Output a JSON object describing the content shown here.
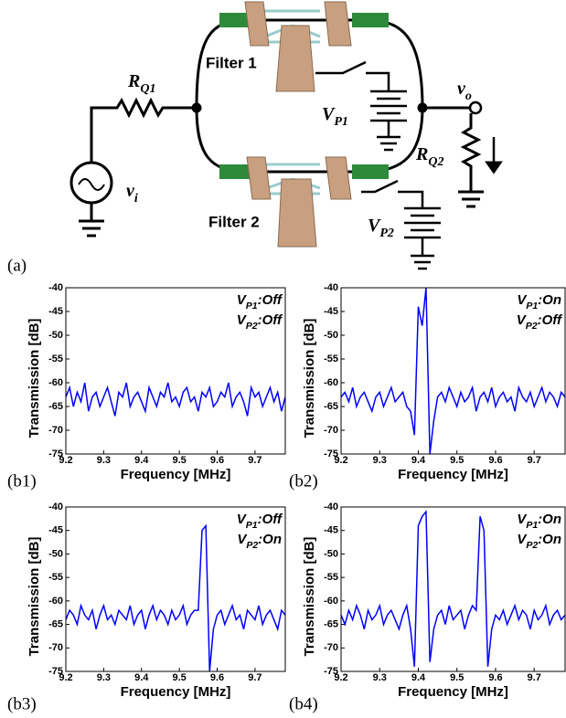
{
  "diagram": {
    "labels": [
      {
        "base": "R",
        "sub": "Q1"
      },
      {
        "base": "v",
        "sub": "i"
      },
      {
        "base": "v",
        "sub": "o"
      },
      {
        "base": "V",
        "sub": "P1"
      },
      {
        "base": "R",
        "sub": "Q2"
      },
      {
        "base": "V",
        "sub": "P2"
      }
    ],
    "filters": [
      "Filter 1",
      "Filter 2"
    ]
  },
  "panel_labels": [
    "(a)",
    "(b1)",
    "(b2)",
    "(b3)",
    "(b4)"
  ],
  "chart_data": [
    {
      "type": "line",
      "xlabel": "Frequency [MHz]",
      "ylabel": "Transmission [dB]",
      "color": "#0000ff",
      "annotations": [
        {
          "base": "V",
          "sub": "P1",
          "state": ":Off"
        },
        {
          "base": "V",
          "sub": "P2",
          "state": ":Off"
        }
      ],
      "xlim": [
        9.2,
        9.78
      ],
      "ylim": [
        -75,
        -40
      ],
      "xticks": [
        9.2,
        9.3,
        9.4,
        9.5,
        9.6,
        9.7
      ],
      "yticks": [
        -40,
        -45,
        -50,
        -55,
        -60,
        -65,
        -70,
        -75
      ],
      "x": [
        9.2,
        9.21,
        9.22,
        9.23,
        9.24,
        9.25,
        9.26,
        9.27,
        9.28,
        9.29,
        9.3,
        9.31,
        9.32,
        9.33,
        9.34,
        9.35,
        9.36,
        9.37,
        9.38,
        9.39,
        9.4,
        9.41,
        9.42,
        9.43,
        9.44,
        9.45,
        9.46,
        9.47,
        9.48,
        9.49,
        9.5,
        9.51,
        9.52,
        9.53,
        9.54,
        9.55,
        9.56,
        9.57,
        9.58,
        9.59,
        9.6,
        9.61,
        9.62,
        9.63,
        9.64,
        9.65,
        9.66,
        9.67,
        9.68,
        9.69,
        9.7,
        9.71,
        9.72,
        9.73,
        9.74,
        9.75,
        9.76,
        9.77,
        9.78
      ],
      "values": [
        -63,
        -61,
        -65,
        -62,
        -64,
        -60,
        -66,
        -63,
        -62,
        -65,
        -63,
        -61,
        -64,
        -67,
        -62,
        -63,
        -60,
        -65,
        -63,
        -62,
        -64,
        -66,
        -61,
        -63,
        -65,
        -62,
        -63,
        -60,
        -64,
        -63,
        -65,
        -62,
        -61,
        -64,
        -63,
        -66,
        -62,
        -63,
        -61,
        -65,
        -64,
        -62,
        -63,
        -60,
        -65,
        -63,
        -62,
        -64,
        -67,
        -61,
        -63,
        -62,
        -65,
        -63,
        -61,
        -64,
        -62,
        -66,
        -63
      ]
    },
    {
      "type": "line",
      "xlabel": "Frequency [MHz]",
      "ylabel": "Transmission [dB]",
      "color": "#0000ff",
      "annotations": [
        {
          "base": "V",
          "sub": "P1",
          "state": ":On"
        },
        {
          "base": "V",
          "sub": "P2",
          "state": ":Off"
        }
      ],
      "xlim": [
        9.2,
        9.78
      ],
      "ylim": [
        -75,
        -40
      ],
      "xticks": [
        9.2,
        9.3,
        9.4,
        9.5,
        9.6,
        9.7
      ],
      "yticks": [
        -40,
        -45,
        -50,
        -55,
        -60,
        -65,
        -70,
        -75
      ],
      "x": [
        9.2,
        9.21,
        9.22,
        9.23,
        9.24,
        9.25,
        9.26,
        9.27,
        9.28,
        9.29,
        9.3,
        9.31,
        9.32,
        9.33,
        9.34,
        9.35,
        9.36,
        9.37,
        9.38,
        9.39,
        9.4,
        9.41,
        9.42,
        9.43,
        9.44,
        9.45,
        9.46,
        9.47,
        9.48,
        9.49,
        9.5,
        9.51,
        9.52,
        9.53,
        9.54,
        9.55,
        9.56,
        9.57,
        9.58,
        9.59,
        9.6,
        9.61,
        9.62,
        9.63,
        9.64,
        9.65,
        9.66,
        9.67,
        9.68,
        9.69,
        9.7,
        9.71,
        9.72,
        9.73,
        9.74,
        9.75,
        9.76,
        9.77,
        9.78
      ],
      "values": [
        -63,
        -62,
        -64,
        -61,
        -65,
        -63,
        -62,
        -64,
        -66,
        -63,
        -62,
        -65,
        -63,
        -61,
        -64,
        -63,
        -62,
        -65,
        -66,
        -71,
        -44,
        -48,
        -40,
        -75,
        -68,
        -63,
        -62,
        -64,
        -61,
        -63,
        -65,
        -62,
        -64,
        -63,
        -61,
        -66,
        -63,
        -62,
        -64,
        -61,
        -65,
        -63,
        -62,
        -64,
        -63,
        -66,
        -61,
        -63,
        -64,
        -62,
        -65,
        -63,
        -61,
        -64,
        -62,
        -63,
        -65,
        -62,
        -63
      ]
    },
    {
      "type": "line",
      "xlabel": "Frequency [MHz]",
      "ylabel": "Transmission [dB]",
      "color": "#0000ff",
      "annotations": [
        {
          "base": "V",
          "sub": "P1",
          "state": ":Off"
        },
        {
          "base": "V",
          "sub": "P2",
          "state": ":On"
        }
      ],
      "xlim": [
        9.2,
        9.78
      ],
      "ylim": [
        -75,
        -40
      ],
      "xticks": [
        9.2,
        9.3,
        9.4,
        9.5,
        9.6,
        9.7
      ],
      "yticks": [
        -40,
        -45,
        -50,
        -55,
        -60,
        -65,
        -70,
        -75
      ],
      "x": [
        9.2,
        9.21,
        9.22,
        9.23,
        9.24,
        9.25,
        9.26,
        9.27,
        9.28,
        9.29,
        9.3,
        9.31,
        9.32,
        9.33,
        9.34,
        9.35,
        9.36,
        9.37,
        9.38,
        9.39,
        9.4,
        9.41,
        9.42,
        9.43,
        9.44,
        9.45,
        9.46,
        9.47,
        9.48,
        9.49,
        9.5,
        9.51,
        9.52,
        9.53,
        9.54,
        9.55,
        9.56,
        9.57,
        9.58,
        9.59,
        9.6,
        9.61,
        9.62,
        9.63,
        9.64,
        9.65,
        9.66,
        9.67,
        9.68,
        9.69,
        9.7,
        9.71,
        9.72,
        9.73,
        9.74,
        9.75,
        9.76,
        9.77,
        9.78
      ],
      "values": [
        -64,
        -62,
        -63,
        -65,
        -61,
        -63,
        -64,
        -62,
        -66,
        -63,
        -61,
        -64,
        -63,
        -65,
        -62,
        -63,
        -64,
        -61,
        -65,
        -63,
        -62,
        -66,
        -63,
        -61,
        -64,
        -62,
        -63,
        -65,
        -62,
        -64,
        -63,
        -61,
        -65,
        -63,
        -62,
        -62,
        -45,
        -44,
        -75,
        -66,
        -63,
        -62,
        -65,
        -63,
        -61,
        -64,
        -63,
        -66,
        -62,
        -63,
        -64,
        -61,
        -65,
        -63,
        -62,
        -64,
        -66,
        -62,
        -63
      ]
    },
    {
      "type": "line",
      "xlabel": "Frequency [MHz]",
      "ylabel": "Transmission [dB]",
      "color": "#0000ff",
      "annotations": [
        {
          "base": "V",
          "sub": "P1",
          "state": ":On"
        },
        {
          "base": "V",
          "sub": "P2",
          "state": ":On"
        }
      ],
      "xlim": [
        9.2,
        9.78
      ],
      "ylim": [
        -75,
        -40
      ],
      "xticks": [
        9.2,
        9.3,
        9.4,
        9.5,
        9.6,
        9.7
      ],
      "yticks": [
        -40,
        -45,
        -50,
        -55,
        -60,
        -65,
        -70,
        -75
      ],
      "x": [
        9.2,
        9.21,
        9.22,
        9.23,
        9.24,
        9.25,
        9.26,
        9.27,
        9.28,
        9.29,
        9.3,
        9.31,
        9.32,
        9.33,
        9.34,
        9.35,
        9.36,
        9.37,
        9.38,
        9.39,
        9.4,
        9.41,
        9.42,
        9.43,
        9.44,
        9.45,
        9.46,
        9.47,
        9.48,
        9.49,
        9.5,
        9.51,
        9.52,
        9.53,
        9.54,
        9.55,
        9.56,
        9.57,
        9.58,
        9.59,
        9.6,
        9.61,
        9.62,
        9.63,
        9.64,
        9.65,
        9.66,
        9.67,
        9.68,
        9.69,
        9.7,
        9.71,
        9.72,
        9.73,
        9.74,
        9.75,
        9.76,
        9.77,
        9.78
      ],
      "values": [
        -63,
        -65,
        -62,
        -64,
        -61,
        -63,
        -66,
        -62,
        -64,
        -63,
        -61,
        -65,
        -63,
        -62,
        -64,
        -66,
        -63,
        -61,
        -66,
        -74,
        -44,
        -42,
        -41,
        -73,
        -66,
        -63,
        -62,
        -65,
        -61,
        -64,
        -63,
        -62,
        -66,
        -63,
        -61,
        -62,
        -42,
        -45,
        -74,
        -66,
        -63,
        -64,
        -62,
        -65,
        -63,
        -61,
        -64,
        -62,
        -63,
        -66,
        -62,
        -64,
        -63,
        -61,
        -65,
        -63,
        -62,
        -64,
        -63
      ]
    }
  ]
}
